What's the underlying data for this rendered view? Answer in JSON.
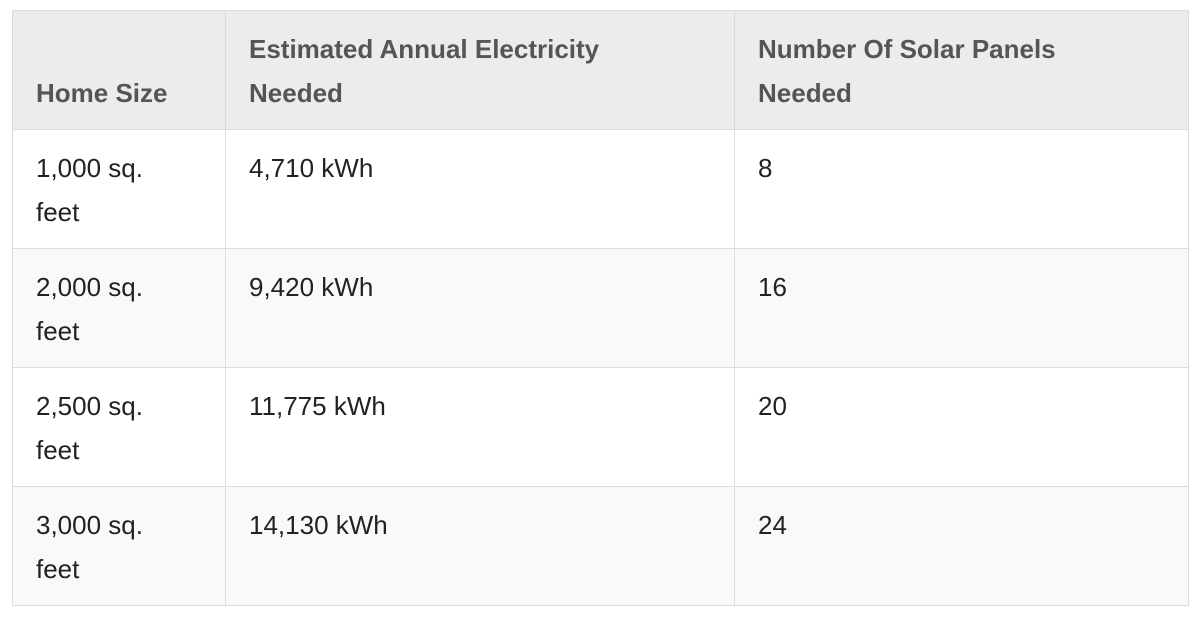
{
  "table": {
    "header": [
      "Home Size",
      "Estimated Annual Electricity Needed",
      "Number Of Solar Panels Needed"
    ],
    "rows": [
      [
        "1,000 sq. feet",
        "4,710 kWh",
        "8"
      ],
      [
        "2,000 sq. feet",
        "9,420 kWh",
        "16"
      ],
      [
        "2,500 sq. feet",
        "11,775 kWh",
        "20"
      ],
      [
        "3,000 sq. feet",
        "14,130 kWh",
        "24"
      ]
    ]
  }
}
